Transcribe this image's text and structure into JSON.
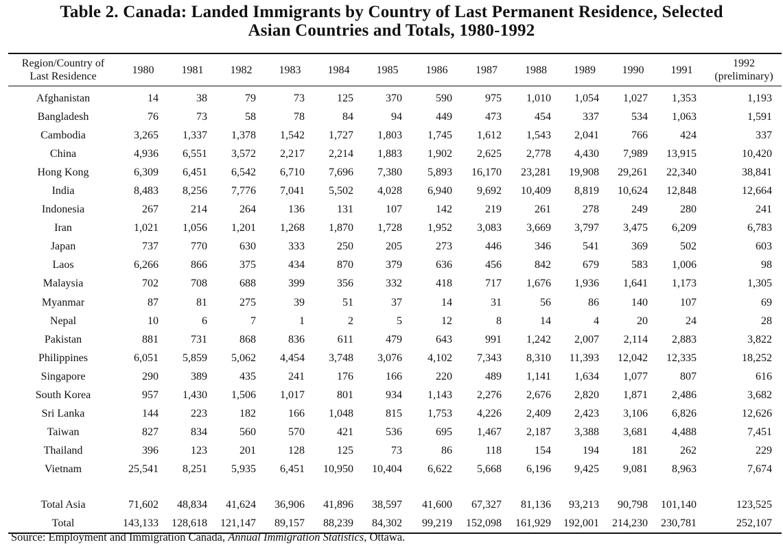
{
  "title": [
    "Table 2.  Canada: Landed Immigrants by Country of Last Permanent Residence, Selected",
    "Asian Countries and Totals, 1980-1992"
  ],
  "table": {
    "header": [
      "Region/Country of\nLast Residence",
      "1980",
      "1981",
      "1982",
      "1983",
      "1984",
      "1985",
      "1986",
      "1987",
      "1988",
      "1989",
      "1990",
      "1991",
      "1992\n(preliminary)"
    ],
    "rows": [
      [
        "Afghanistan",
        "14",
        "38",
        "79",
        "73",
        "125",
        "370",
        "590",
        "975",
        "1,010",
        "1,054",
        "1,027",
        "1,353",
        "1,193"
      ],
      [
        "Bangladesh",
        "76",
        "73",
        "58",
        "78",
        "84",
        "94",
        "449",
        "473",
        "454",
        "337",
        "534",
        "1,063",
        "1,591"
      ],
      [
        "Cambodia",
        "3,265",
        "1,337",
        "1,378",
        "1,542",
        "1,727",
        "1,803",
        "1,745",
        "1,612",
        "1,543",
        "2,041",
        "766",
        "424",
        "337"
      ],
      [
        "China",
        "4,936",
        "6,551",
        "3,572",
        "2,217",
        "2,214",
        "1,883",
        "1,902",
        "2,625",
        "2,778",
        "4,430",
        "7,989",
        "13,915",
        "10,420"
      ],
      [
        "Hong Kong",
        "6,309",
        "6,451",
        "6,542",
        "6,710",
        "7,696",
        "7,380",
        "5,893",
        "16,170",
        "23,281",
        "19,908",
        "29,261",
        "22,340",
        "38,841"
      ],
      [
        "India",
        "8,483",
        "8,256",
        "7,776",
        "7,041",
        "5,502",
        "4,028",
        "6,940",
        "9,692",
        "10,409",
        "8,819",
        "10,624",
        "12,848",
        "12,664"
      ],
      [
        "Indonesia",
        "267",
        "214",
        "264",
        "136",
        "131",
        "107",
        "142",
        "219",
        "261",
        "278",
        "249",
        "280",
        "241"
      ],
      [
        "Iran",
        "1,021",
        "1,056",
        "1,201",
        "1,268",
        "1,870",
        "1,728",
        "1,952",
        "3,083",
        "3,669",
        "3,797",
        "3,475",
        "6,209",
        "6,783"
      ],
      [
        "Japan",
        "737",
        "770",
        "630",
        "333",
        "250",
        "205",
        "273",
        "446",
        "346",
        "541",
        "369",
        "502",
        "603"
      ],
      [
        "Laos",
        "6,266",
        "866",
        "375",
        "434",
        "870",
        "379",
        "636",
        "456",
        "842",
        "679",
        "583",
        "1,006",
        "98"
      ],
      [
        "Malaysia",
        "702",
        "708",
        "688",
        "399",
        "356",
        "332",
        "418",
        "717",
        "1,676",
        "1,936",
        "1,641",
        "1,173",
        "1,305"
      ],
      [
        "Myanmar",
        "87",
        "81",
        "275",
        "39",
        "51",
        "37",
        "14",
        "31",
        "56",
        "86",
        "140",
        "107",
        "69"
      ],
      [
        "Nepal",
        "10",
        "6",
        "7",
        "1",
        "2",
        "5",
        "12",
        "8",
        "14",
        "4",
        "20",
        "24",
        "28"
      ],
      [
        "Pakistan",
        "881",
        "731",
        "868",
        "836",
        "611",
        "479",
        "643",
        "991",
        "1,242",
        "2,007",
        "2,114",
        "2,883",
        "3,822"
      ],
      [
        "Philippines",
        "6,051",
        "5,859",
        "5,062",
        "4,454",
        "3,748",
        "3,076",
        "4,102",
        "7,343",
        "8,310",
        "11,393",
        "12,042",
        "12,335",
        "18,252"
      ],
      [
        "Singapore",
        "290",
        "389",
        "435",
        "241",
        "176",
        "166",
        "220",
        "489",
        "1,141",
        "1,634",
        "1,077",
        "807",
        "616"
      ],
      [
        "South Korea",
        "957",
        "1,430",
        "1,506",
        "1,017",
        "801",
        "934",
        "1,143",
        "2,276",
        "2,676",
        "2,820",
        "1,871",
        "2,486",
        "3,682"
      ],
      [
        "Sri Lanka",
        "144",
        "223",
        "182",
        "166",
        "1,048",
        "815",
        "1,753",
        "4,226",
        "2,409",
        "2,423",
        "3,106",
        "6,826",
        "12,626"
      ],
      [
        "Taiwan",
        "827",
        "834",
        "560",
        "570",
        "421",
        "536",
        "695",
        "1,467",
        "2,187",
        "3,388",
        "3,681",
        "4,488",
        "7,451"
      ],
      [
        "Thailand",
        "396",
        "123",
        "201",
        "128",
        "125",
        "73",
        "86",
        "118",
        "154",
        "194",
        "181",
        "262",
        "229"
      ],
      [
        "Vietnam",
        "25,541",
        "8,251",
        "5,935",
        "6,451",
        "10,950",
        "10,404",
        "6,622",
        "5,668",
        "6,196",
        "9,425",
        "9,081",
        "8,963",
        "7,674"
      ]
    ],
    "totals": [
      [
        "Total Asia",
        "71,602",
        "48,834",
        "41,624",
        "36,906",
        "41,896",
        "38,597",
        "41,600",
        "67,327",
        "81,136",
        "93,213",
        "90,798",
        "101,140",
        "123,525"
      ],
      [
        "Total",
        "143,133",
        "128,618",
        "121,147",
        "89,157",
        "88,239",
        "84,302",
        "99,219",
        "152,098",
        "161,929",
        "192,001",
        "214,230",
        "230,781",
        "252,107"
      ]
    ]
  },
  "source": {
    "prefix": "Source: Employment and Immigration Canada, ",
    "publication": "Annual Immigration Statistics",
    "suffix": ", Ottawa."
  }
}
